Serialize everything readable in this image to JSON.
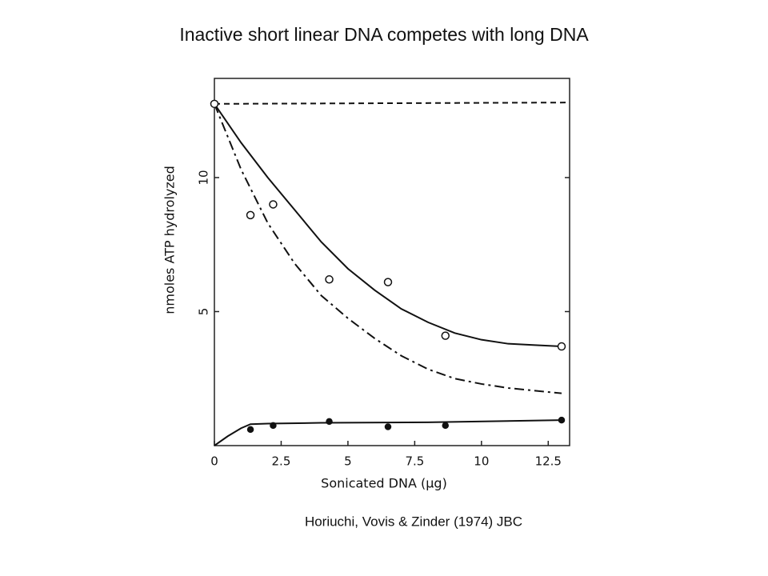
{
  "chart_data": {
    "type": "line",
    "title": "Inactive short linear DNA competes with long DNA",
    "subtitle": "Horiuchi, Vovis & Zinder (1974) JBC",
    "x_label": "Sonicated DNA (μg)",
    "y_label": "nmoles ATP hydrolyzed",
    "xlim": [
      0,
      13.3
    ],
    "ylim": [
      0,
      13.7
    ],
    "xticks": [
      0,
      2.5,
      5,
      7.5,
      10,
      12.5
    ],
    "yticks": [
      5,
      10
    ],
    "grid": false,
    "series": [
      {
        "style": "dashed",
        "color": "#111",
        "x": [
          0,
          13.3
        ],
        "values": [
          12.75,
          12.8
        ]
      },
      {
        "style": "solid",
        "color": "#111",
        "x": [
          0,
          1,
          2,
          3,
          4,
          5,
          6,
          7,
          8,
          9,
          10,
          11,
          12,
          13
        ],
        "values": [
          12.75,
          11.3,
          10,
          8.8,
          7.6,
          6.6,
          5.8,
          5.1,
          4.6,
          4.2,
          3.95,
          3.8,
          3.75,
          3.7
        ]
      },
      {
        "style": "dashdot",
        "color": "#111",
        "x": [
          0,
          1,
          2,
          3,
          4,
          5,
          6,
          7,
          8,
          9,
          10,
          11,
          12,
          13
        ],
        "values": [
          12.75,
          10.3,
          8.3,
          6.8,
          5.6,
          4.75,
          4.0,
          3.35,
          2.85,
          2.5,
          2.3,
          2.15,
          2.05,
          1.95
        ]
      },
      {
        "style": "solid",
        "color": "#111",
        "x": [
          0,
          0.5,
          1,
          1.35,
          2,
          4,
          8,
          13
        ],
        "values": [
          0,
          0.35,
          0.65,
          0.8,
          0.82,
          0.85,
          0.87,
          0.95
        ]
      },
      {
        "style": "markers",
        "marker": "open",
        "color": "#111",
        "x": [
          0,
          1.35,
          2.2,
          4.3,
          6.5,
          8.65,
          13.0
        ],
        "values": [
          12.75,
          8.6,
          9.0,
          6.2,
          6.1,
          4.1,
          3.7
        ]
      },
      {
        "style": "markers",
        "marker": "filled",
        "color": "#111",
        "x": [
          1.35,
          2.2,
          4.3,
          6.5,
          8.65,
          13.0
        ],
        "values": [
          0.6,
          0.75,
          0.9,
          0.7,
          0.75,
          0.95
        ]
      }
    ]
  }
}
